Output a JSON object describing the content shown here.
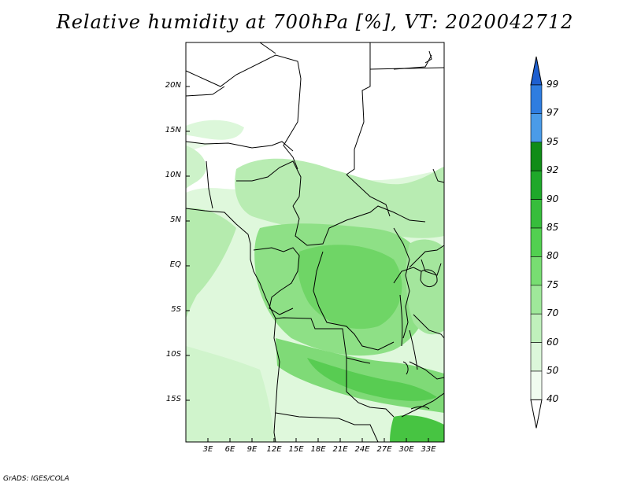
{
  "title": "Relative humidity at 700hPa [%], VT: 2020042712",
  "footer": "GrADS: IGES/COLA",
  "lat_labels": [
    "20N",
    "15N",
    "10N",
    "5N",
    "EQ",
    "5S",
    "10S",
    "15S"
  ],
  "lat_values": [
    20,
    15,
    10,
    5,
    0,
    -5,
    -10,
    -15
  ],
  "lon_labels": [
    "3E",
    "6E",
    "9E",
    "12E",
    "15E",
    "18E",
    "21E",
    "24E",
    "27E",
    "30E",
    "33E"
  ],
  "lon_values": [
    3,
    6,
    9,
    12,
    15,
    18,
    21,
    24,
    27,
    30,
    33
  ],
  "colorbar": {
    "levels": [
      "99",
      "97",
      "95",
      "92",
      "90",
      "85",
      "80",
      "75",
      "70",
      "60",
      "50",
      "40"
    ],
    "colors": [
      "#1e5fd0",
      "#2f7de0",
      "#4a9be8",
      "#108c18",
      "#1fa82a",
      "#37bd3c",
      "#52d050",
      "#78dd72",
      "#9fe89a",
      "#c0f0bc",
      "#dcf7da",
      "#f0fcef"
    ]
  }
}
